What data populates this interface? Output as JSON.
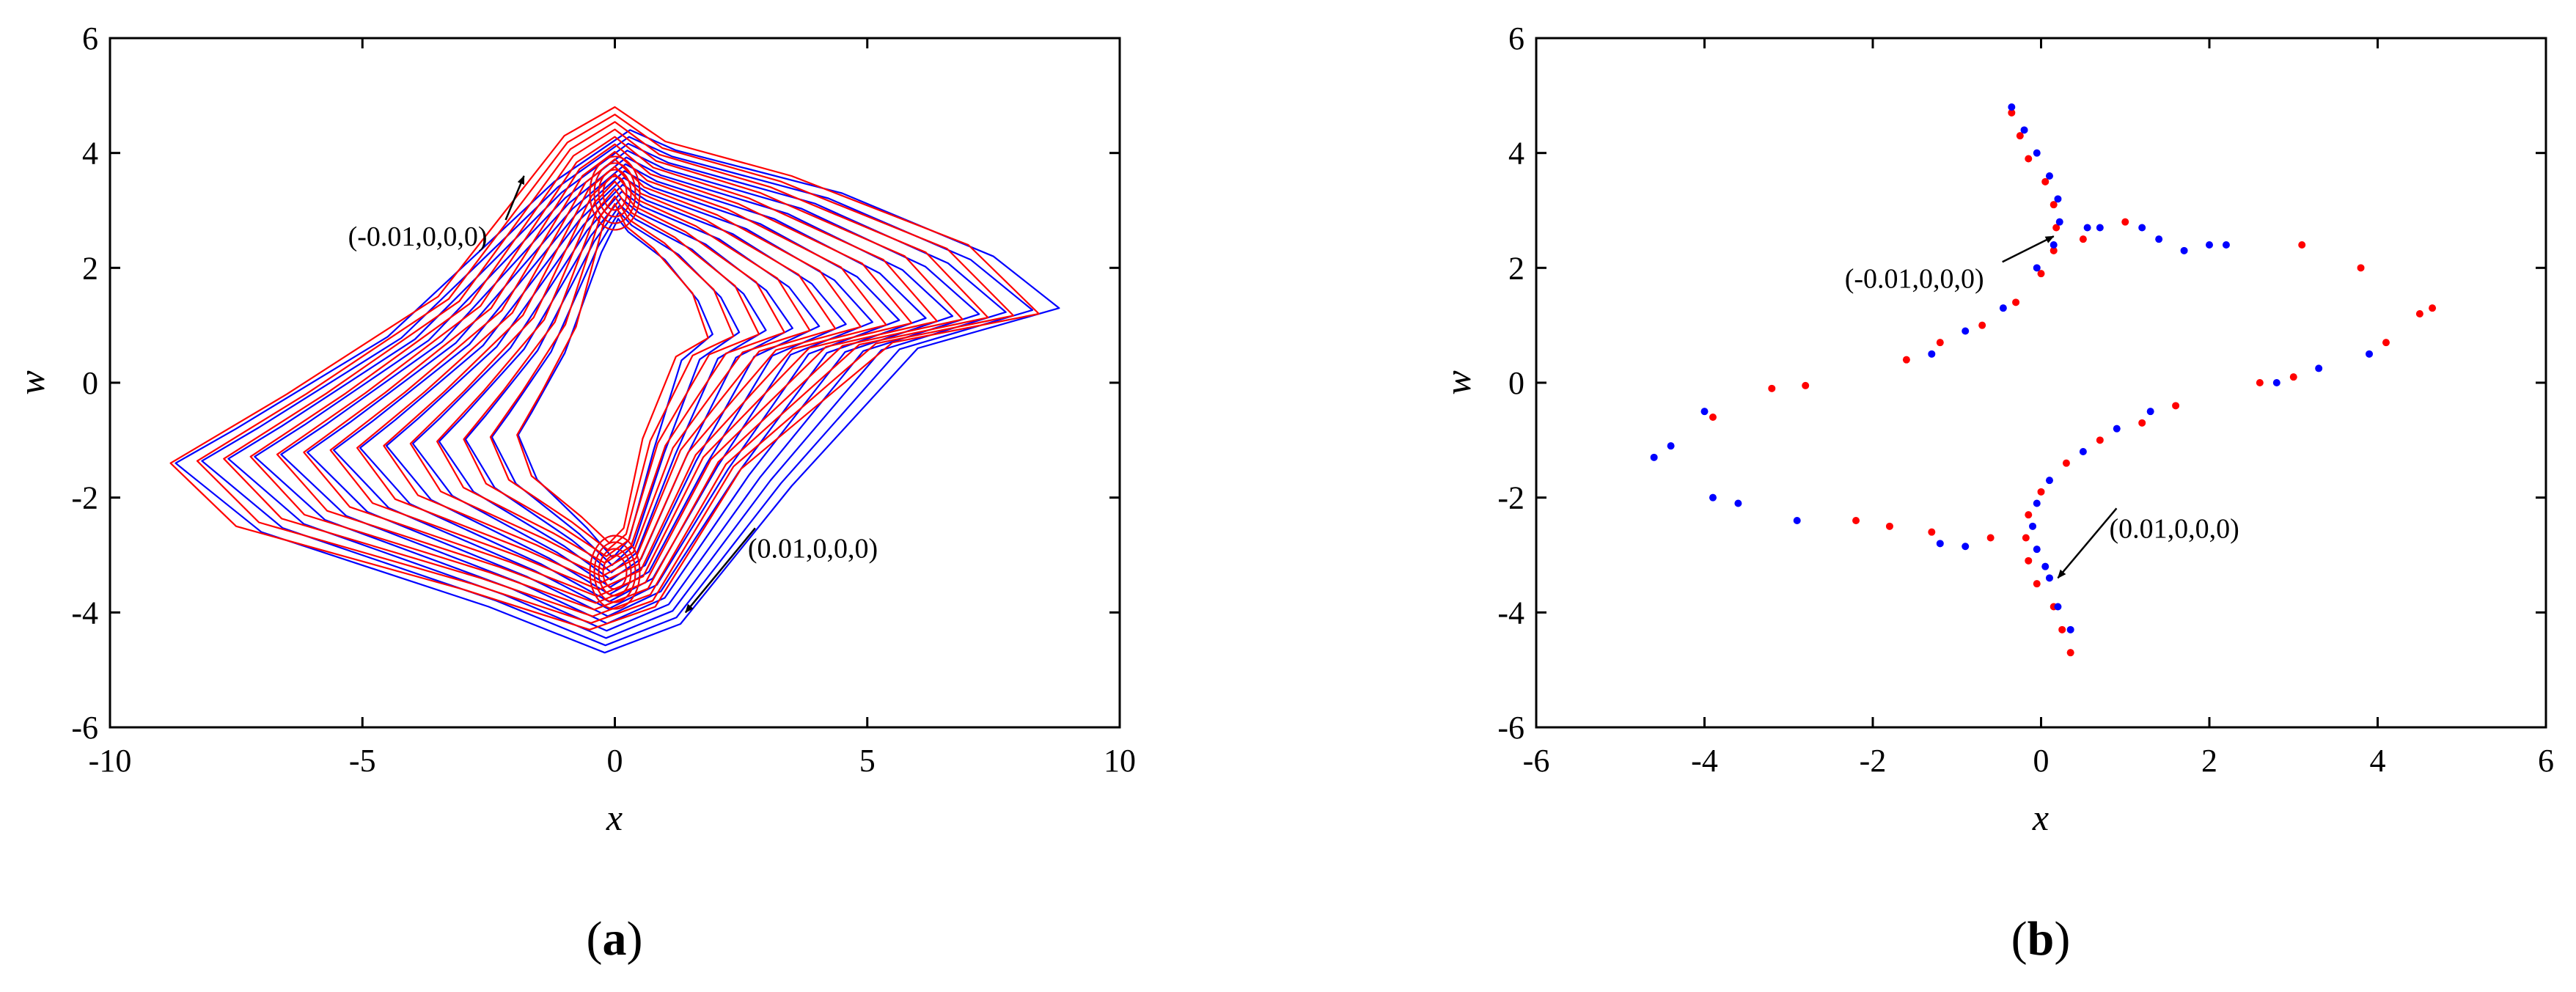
{
  "chart_data": [
    {
      "panel": "a",
      "type": "line",
      "xlabel": "x",
      "ylabel": "w",
      "xlim": [
        -10,
        10
      ],
      "ylim": [
        -6,
        6
      ],
      "xticks": [
        "-10",
        "-5",
        "0",
        "5",
        "10"
      ],
      "yticks": [
        "-6",
        "-4",
        "-2",
        "0",
        "2",
        "4",
        "6"
      ],
      "series": [
        {
          "color": "#0000ff",
          "points": [
            [
              8.8,
              1.3
            ],
            [
              7.5,
              2.2
            ],
            [
              4.5,
              3.3
            ],
            [
              1.2,
              4.05
            ],
            [
              0.3,
              4.4
            ],
            [
              -1.2,
              3.5
            ],
            [
              -4.5,
              0.8
            ],
            [
              -7.5,
              -0.8
            ],
            [
              -8.7,
              -1.4
            ],
            [
              -7.0,
              -2.6
            ],
            [
              -2.5,
              -3.9
            ],
            [
              -0.2,
              -4.7
            ],
            [
              1.3,
              -4.2
            ],
            [
              3.5,
              -1.8
            ],
            [
              6.0,
              0.6
            ],
            [
              8.8,
              1.3
            ]
          ]
        },
        {
          "color": "#ff0000",
          "points": [
            [
              8.4,
              1.2
            ],
            [
              7.0,
              2.4
            ],
            [
              3.5,
              3.6
            ],
            [
              1.0,
              4.2
            ],
            [
              0.0,
              4.8
            ],
            [
              -1.0,
              4.3
            ],
            [
              -3.5,
              1.5
            ],
            [
              -6.5,
              -0.2
            ],
            [
              -8.8,
              -1.4
            ],
            [
              -7.5,
              -2.5
            ],
            [
              -3.0,
              -3.6
            ],
            [
              -0.5,
              -4.3
            ],
            [
              0.8,
              -3.9
            ],
            [
              2.5,
              -1.5
            ],
            [
              5.5,
              0.7
            ],
            [
              8.4,
              1.2
            ]
          ]
        }
      ],
      "annotations": [
        {
          "text": "(-0.01,0,0,0)",
          "x": -1.8,
          "y": 3.6
        },
        {
          "text": "(0.01,0,0,0)",
          "x": 1.4,
          "y": -4.0
        }
      ],
      "caption": "(a)"
    },
    {
      "panel": "b",
      "type": "scatter",
      "xlabel": "x",
      "ylabel": "w",
      "xlim": [
        -6,
        6
      ],
      "ylim": [
        -6,
        6
      ],
      "xticks": [
        "-6",
        "-4",
        "-2",
        "0",
        "2",
        "4",
        "6"
      ],
      "yticks": [
        "-6",
        "-4",
        "-2",
        "0",
        "2",
        "4",
        "6"
      ],
      "series": [
        {
          "color": "#ff0000",
          "points": [
            [
              -0.35,
              4.7
            ],
            [
              -0.25,
              4.3
            ],
            [
              -0.15,
              3.9
            ],
            [
              0.05,
              3.5
            ],
            [
              0.15,
              3.1
            ],
            [
              0.18,
              2.7
            ],
            [
              0.15,
              2.3
            ],
            [
              0.0,
              1.9
            ],
            [
              -0.3,
              1.4
            ],
            [
              -0.7,
              1.0
            ],
            [
              -1.2,
              0.7
            ],
            [
              -1.6,
              0.4
            ],
            [
              0.35,
              -4.7
            ],
            [
              0.25,
              -4.3
            ],
            [
              0.15,
              -3.9
            ],
            [
              -0.05,
              -3.5
            ],
            [
              -0.15,
              -3.1
            ],
            [
              -0.18,
              -2.7
            ],
            [
              -0.15,
              -2.3
            ],
            [
              0.0,
              -1.9
            ],
            [
              0.3,
              -1.4
            ],
            [
              0.7,
              -1.0
            ],
            [
              1.2,
              -0.7
            ],
            [
              1.6,
              -0.4
            ],
            [
              -2.2,
              -2.4
            ],
            [
              -1.8,
              -2.5
            ],
            [
              -1.3,
              -2.6
            ],
            [
              -0.6,
              -2.7
            ],
            [
              -3.2,
              -0.1
            ],
            [
              -2.8,
              -0.05
            ],
            [
              -3.9,
              -0.6
            ],
            [
              3.1,
              2.4
            ],
            [
              3.8,
              2.0
            ],
            [
              4.5,
              1.2
            ],
            [
              4.65,
              1.3
            ],
            [
              4.1,
              0.7
            ],
            [
              3.0,
              0.1
            ],
            [
              2.6,
              0.0
            ],
            [
              1.0,
              2.8
            ],
            [
              0.5,
              2.5
            ]
          ]
        },
        {
          "color": "#0000ff",
          "points": [
            [
              -0.35,
              4.8
            ],
            [
              -0.2,
              4.4
            ],
            [
              -0.05,
              4.0
            ],
            [
              0.1,
              3.6
            ],
            [
              0.2,
              3.2
            ],
            [
              0.22,
              2.8
            ],
            [
              0.15,
              2.4
            ],
            [
              -0.05,
              2.0
            ],
            [
              -0.45,
              1.3
            ],
            [
              -0.9,
              0.9
            ],
            [
              -1.3,
              0.5
            ],
            [
              0.35,
              -4.3
            ],
            [
              0.2,
              -3.9
            ],
            [
              0.1,
              -3.4
            ],
            [
              0.05,
              -3.2
            ],
            [
              -0.05,
              -2.9
            ],
            [
              -0.1,
              -2.5
            ],
            [
              -0.05,
              -2.1
            ],
            [
              0.1,
              -1.7
            ],
            [
              0.5,
              -1.2
            ],
            [
              0.9,
              -0.8
            ],
            [
              1.3,
              -0.5
            ],
            [
              -4.6,
              -1.3
            ],
            [
              -4.4,
              -1.1
            ],
            [
              -4.0,
              -0.5
            ],
            [
              -3.9,
              -2.0
            ],
            [
              -3.6,
              -2.1
            ],
            [
              -2.9,
              -2.4
            ],
            [
              -1.2,
              -2.8
            ],
            [
              -0.9,
              -2.85
            ],
            [
              3.9,
              0.5
            ],
            [
              3.3,
              0.25
            ],
            [
              2.8,
              0.0
            ],
            [
              2.0,
              2.4
            ],
            [
              2.2,
              2.4
            ],
            [
              1.2,
              2.7
            ],
            [
              1.4,
              2.5
            ],
            [
              1.7,
              2.3
            ],
            [
              0.55,
              2.7
            ],
            [
              0.7,
              2.7
            ]
          ]
        }
      ],
      "annotations": [
        {
          "text": "(-0.01,0,0,0)",
          "x": 0.15,
          "y": 2.55
        },
        {
          "text": "(0.01,0,0,0)",
          "x": 0.2,
          "y": -3.4
        }
      ],
      "caption": "(b)"
    }
  ]
}
